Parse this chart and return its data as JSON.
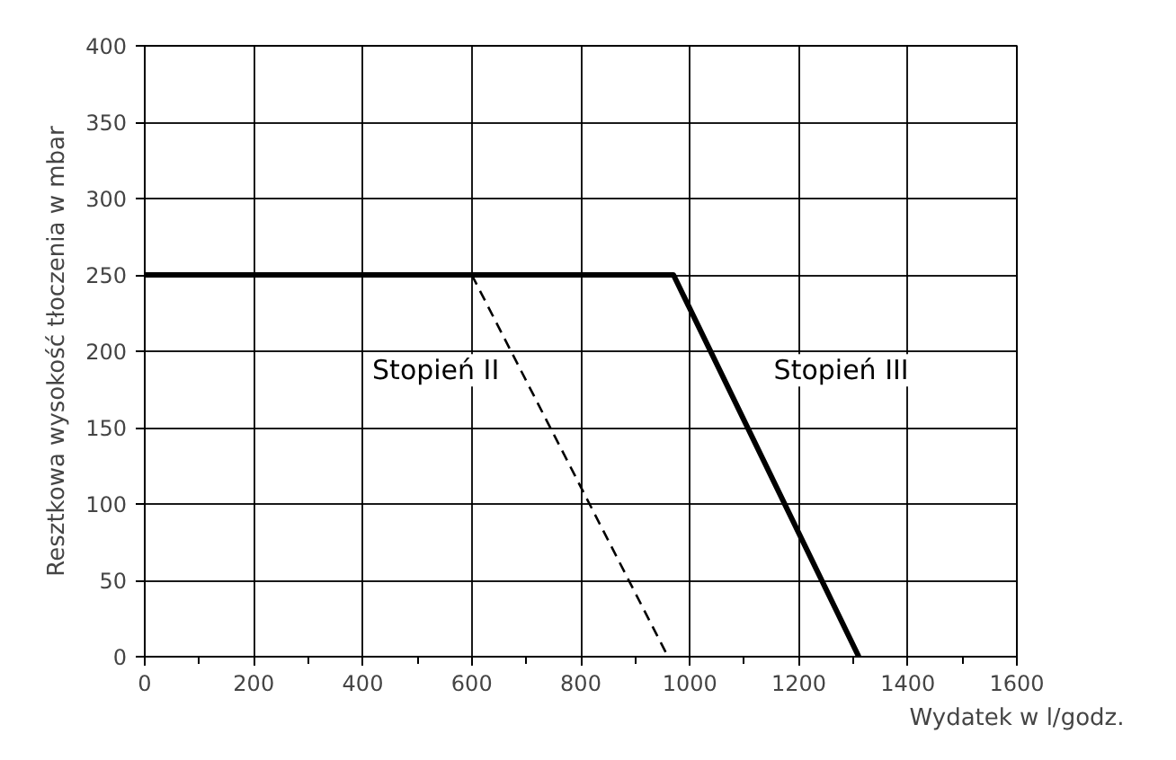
{
  "chart_data": {
    "type": "line",
    "xlabel": "Wydatek w l/godz.",
    "ylabel": "Resztkowa wysokość tłoczenia w mbar",
    "xlim": [
      0,
      1600
    ],
    "ylim": [
      0,
      400
    ],
    "xticks": [
      0,
      {
        "value": 100,
        "label": null
      },
      200,
      {
        "value": 300,
        "label": null
      },
      400,
      {
        "value": 500,
        "label": null
      },
      600,
      {
        "value": 700,
        "label": null
      },
      800,
      {
        "value": 900,
        "label": null
      },
      1000,
      {
        "value": 1100,
        "label": null
      },
      1200,
      {
        "value": 1300,
        "label": null
      },
      1400,
      {
        "value": 1500,
        "label": null
      },
      1600
    ],
    "yticks": [
      0,
      50,
      100,
      150,
      200,
      250,
      300,
      350,
      400
    ],
    "grid": true,
    "series": [
      {
        "name": "Stopień III",
        "color": "#000000",
        "x": [
          0,
          970,
          1310
        ],
        "values": [
          250,
          250,
          0
        ],
        "line_style": "solid"
      },
      {
        "name": "Stopień II",
        "color": "#000000",
        "x": [
          600,
          960
        ],
        "values": [
          250,
          0
        ],
        "line_style": "dashed"
      }
    ]
  }
}
